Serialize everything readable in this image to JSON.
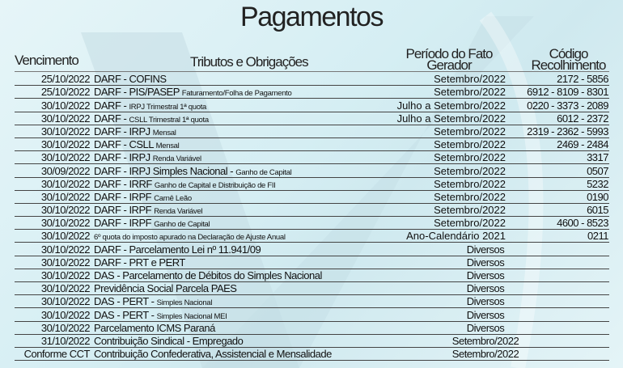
{
  "title": "Pagamentos",
  "headers": {
    "vencimento": "Vencimento",
    "tributos": "Tributos e Obrigações",
    "periodo_1": "Período do Fato",
    "periodo_2": "Gerador",
    "codigo_1": "Código",
    "codigo_2": "Recolhimento"
  },
  "rows": [
    {
      "date": "25/10/2022",
      "main": "DARF - COFINS",
      "sub": "",
      "period": "Setembro/2022",
      "code": "2172 - 5856"
    },
    {
      "date": "25/10/2022",
      "main": "DARF - PIS/PASEP",
      "sub": "Faturamento/Folha de Pagamento",
      "period": "Setembro/2022",
      "code": "6912 - 8109 - 8301"
    },
    {
      "date": "30/10/2022",
      "main": "DARF -",
      "sub": "IRPJ Trimestral 1ª quota",
      "period": "Julho a Setembro/2022",
      "code": "0220 - 3373 - 2089"
    },
    {
      "date": "30/10/2022",
      "main": "DARF -",
      "sub": "CSLL Trimestral 1ª quota",
      "period": "Julho a Setembro/2022",
      "code": "6012 - 2372"
    },
    {
      "date": "30/10/2022",
      "main": "DARF - IRPJ",
      "sub": "Mensal",
      "period": "Setembro/2022",
      "code": "2319 - 2362 - 5993"
    },
    {
      "date": "30/10/2022",
      "main": "DARF - CSLL",
      "sub": "Mensal",
      "period": "Setembro/2022",
      "code": "2469 - 2484"
    },
    {
      "date": "30/10/2022",
      "main": "DARF - IRPJ",
      "sub": "Renda Variável",
      "period": "Setembro/2022",
      "code": "3317"
    },
    {
      "date": "30/09/2022",
      "main": "DARF - IRPJ Simples Nacional -",
      "sub": "Ganho de Capital",
      "period": "Setembro/2022",
      "code": "0507"
    },
    {
      "date": "30/10/2022",
      "main": "DARF - IRRF",
      "sub": "Ganho de Capital e Distribuição de FII",
      "period": "Setembro/2022",
      "code": "5232"
    },
    {
      "date": "30/10/2022",
      "main": "DARF - IRPF",
      "sub": "Carnê Leão",
      "period": "Setembro/2022",
      "code": "0190"
    },
    {
      "date": "30/10/2022",
      "main": "DARF - IRPF",
      "sub": "Renda Variável",
      "period": "Setembro/2022",
      "code": "6015"
    },
    {
      "date": "30/10/2022",
      "main": "DARF - IRPF",
      "sub": "Ganho de Capital",
      "period": "Setembro/2022",
      "code": "4600 - 8523"
    },
    {
      "date": "30/10/2022",
      "main": "",
      "sub": "6º quota do imposto apurado na Declaração de Ajuste Anual",
      "period": "Ano-Calendário 2021",
      "code": "0211"
    },
    {
      "date": "30/10/2022",
      "main": "DARF - Parcelamento Lei nº 11.941/09",
      "sub": "",
      "diversos": "Diversos"
    },
    {
      "date": "30/10/2022",
      "main": "DARF - PRT e PERT",
      "sub": "",
      "diversos": "Diversos"
    },
    {
      "date": "30/10/2022",
      "main": "DAS - Parcelamento de Débitos do Simples Nacional",
      "sub": "",
      "diversos": "Diversos"
    },
    {
      "date": "30/10/2022",
      "main": "Previdência Social Parcela PAES",
      "sub": "",
      "diversos": "Diversos"
    },
    {
      "date": "30/10/2022",
      "main": "DAS - PERT -",
      "sub": "Simples Nacional",
      "diversos": "Diversos"
    },
    {
      "date": "30/10/2022",
      "main": "DAS - PERT -",
      "sub": "Simples Nacional MEI",
      "diversos": "Diversos"
    },
    {
      "date": "30/10/2022",
      "main": "Parcelamento ICMS Paraná",
      "sub": "",
      "diversos": "Diversos"
    },
    {
      "date": "31/10/2022",
      "main": "Contribuição Sindical - Empregado",
      "sub": "",
      "diversos": "Setembro/2022"
    },
    {
      "date": "Conforme CCT",
      "main": "Contribuição Confederativa, Assistencial e Mensalidade",
      "sub": "",
      "diversos": "Setembro/2022"
    }
  ]
}
